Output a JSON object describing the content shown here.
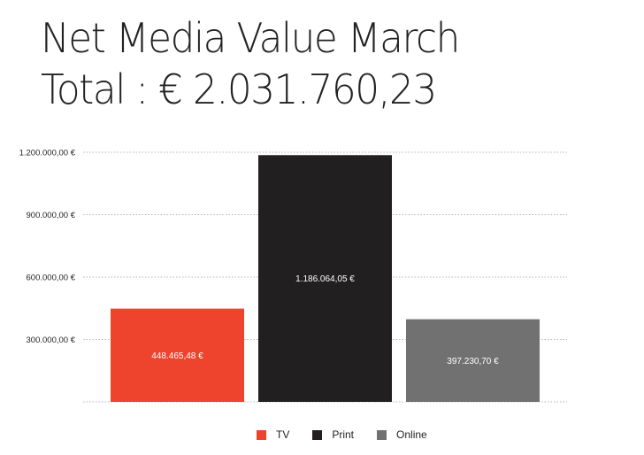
{
  "header": {
    "title": "Net Media Value March",
    "total": "Total : € 2.031.760,23"
  },
  "colors": {
    "tv": "#ee432c",
    "print": "#221f20",
    "online": "#727171"
  },
  "chart_data": {
    "type": "bar",
    "title": "Net Media Value March",
    "categories": [
      "TV",
      "Print",
      "Online"
    ],
    "values": [
      448465.48,
      1186064.05,
      397230.7
    ],
    "value_labels": [
      "448.465,48 €",
      "1.186.064,05 €",
      "397.230,70 €"
    ],
    "colors": [
      "#ee432c",
      "#221f20",
      "#727171"
    ],
    "ylim": [
      0,
      1200000
    ],
    "yticks": [
      300000,
      600000,
      900000,
      1200000
    ],
    "ytick_labels": [
      "300.000,00 €",
      "600.000,00 €",
      "900.000,00 €",
      "1.200.000,00 €"
    ],
    "grid": true,
    "legend": "bottom-center"
  }
}
